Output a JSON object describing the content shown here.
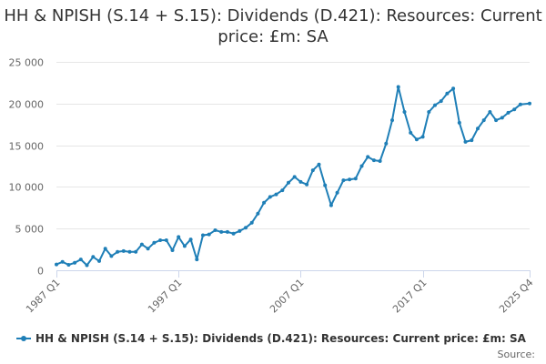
{
  "title": "HH & NPISH (S.14 + S.15): Dividends (D.421): Resources: Current price: £m: SA",
  "source_label": "Source:",
  "colors": {
    "series": "#1f7fb7",
    "grid": "#e6e6e6",
    "axis": "#ccd6eb",
    "text": "#666666"
  },
  "chart_data": {
    "type": "line",
    "title": "HH & NPISH (S.14 + S.15): Dividends (D.421): Resources: Current price: £m: SA",
    "xlabel": "",
    "ylabel": "",
    "x_ticks": [
      "1987 Q1",
      "1997 Q1",
      "2007 Q1",
      "2017 Q1",
      "2025 Q4"
    ],
    "x_range": [
      "1987 Q1",
      "2025 Q4"
    ],
    "ylim": [
      0,
      25000
    ],
    "y_ticks": [
      0,
      5000,
      10000,
      15000,
      20000,
      25000
    ],
    "y_tick_labels": [
      "0",
      "5 000",
      "10 000",
      "15 000",
      "20 000",
      "25 000"
    ],
    "grid": true,
    "legend": "bottom",
    "series": [
      {
        "name": "HH & NPISH (S.14 + S.15): Dividends (D.421): Resources: Current price: £m: SA",
        "x": [
          "1987 Q1",
          "1987 Q3",
          "1988 Q1",
          "1988 Q3",
          "1989 Q1",
          "1989 Q3",
          "1990 Q1",
          "1990 Q3",
          "1991 Q1",
          "1991 Q3",
          "1992 Q1",
          "1992 Q3",
          "1993 Q1",
          "1993 Q3",
          "1994 Q1",
          "1994 Q3",
          "1995 Q1",
          "1995 Q3",
          "1996 Q1",
          "1996 Q3",
          "1997 Q1",
          "1997 Q3",
          "1998 Q1",
          "1998 Q3",
          "1999 Q1",
          "1999 Q3",
          "2000 Q1",
          "2000 Q3",
          "2001 Q1",
          "2001 Q3",
          "2002 Q1",
          "2002 Q3",
          "2003 Q1",
          "2003 Q3",
          "2004 Q1",
          "2004 Q3",
          "2005 Q1",
          "2005 Q3",
          "2006 Q1",
          "2006 Q3",
          "2007 Q1",
          "2007 Q3",
          "2008 Q1",
          "2008 Q3",
          "2009 Q1",
          "2009 Q3",
          "2010 Q1",
          "2010 Q3",
          "2011 Q1",
          "2011 Q3",
          "2012 Q1",
          "2012 Q3",
          "2013 Q1",
          "2013 Q3",
          "2014 Q1",
          "2014 Q3",
          "2015 Q1",
          "2015 Q3",
          "2016 Q1",
          "2016 Q3",
          "2017 Q1",
          "2017 Q3",
          "2018 Q1",
          "2018 Q3",
          "2019 Q1",
          "2019 Q3",
          "2020 Q1",
          "2020 Q3",
          "2021 Q1",
          "2021 Q3",
          "2022 Q1",
          "2022 Q3",
          "2023 Q1",
          "2023 Q3",
          "2024 Q1",
          "2024 Q3",
          "2025 Q1",
          "2025 Q4"
        ],
        "values": [
          700,
          1000,
          650,
          900,
          1300,
          600,
          1600,
          1100,
          2600,
          1700,
          2200,
          2300,
          2200,
          2200,
          3100,
          2600,
          3300,
          3600,
          3600,
          2400,
          4000,
          2900,
          3700,
          1300,
          4200,
          4300,
          4800,
          4600,
          4600,
          4400,
          4700,
          5100,
          5700,
          6800,
          8100,
          8800,
          9100,
          9600,
          10500,
          11200,
          10600,
          10300,
          12000,
          12700,
          10200,
          7800,
          9300,
          10800,
          10900,
          11000,
          12500,
          13600,
          13200,
          13100,
          15200,
          18000,
          22000,
          19000,
          16500,
          15700,
          16000,
          19000,
          19800,
          20300,
          21200,
          21800,
          17700,
          15400,
          15600,
          17000,
          18000,
          19000,
          18000,
          18300,
          18900,
          19300,
          19900,
          20000
        ]
      }
    ]
  }
}
